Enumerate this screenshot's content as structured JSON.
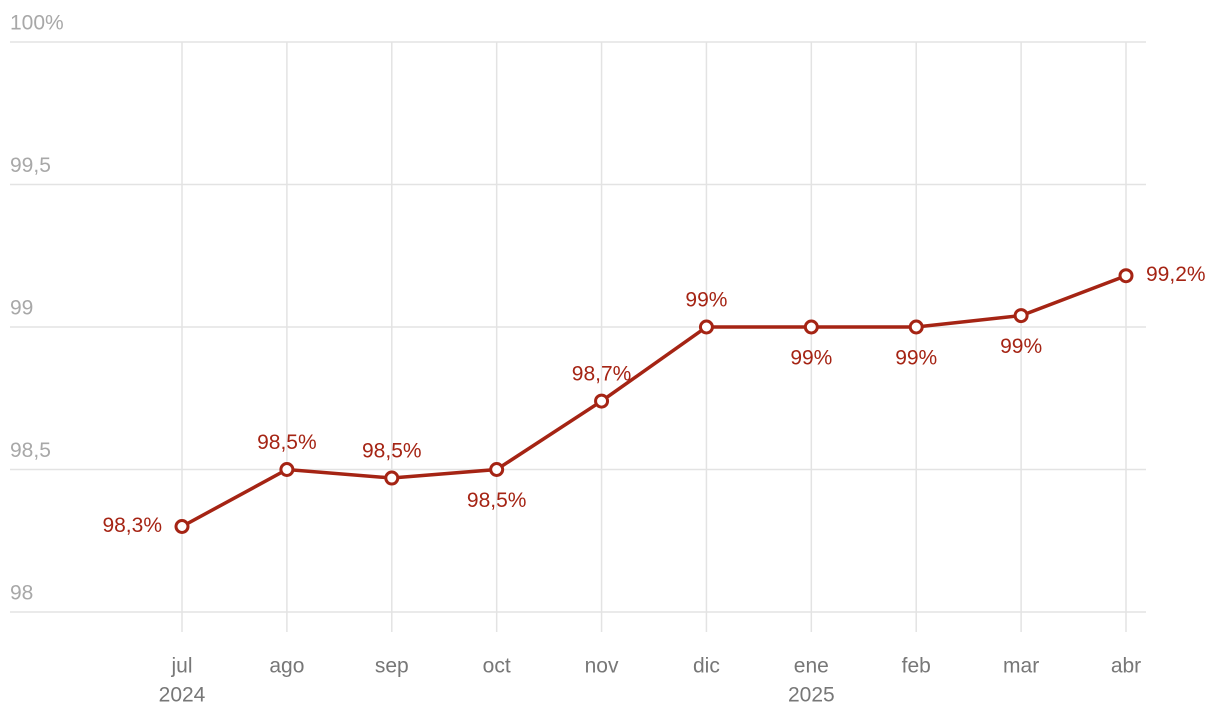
{
  "chart_data": {
    "type": "line",
    "categories": [
      "jul",
      "ago",
      "sep",
      "oct",
      "nov",
      "dic",
      "ene",
      "feb",
      "mar",
      "abr"
    ],
    "years": [
      "2024",
      null,
      null,
      null,
      null,
      null,
      "2025",
      null,
      null,
      null
    ],
    "series": [
      {
        "color": "#a52414",
        "values": [
          98.3,
          98.5,
          98.47,
          98.5,
          98.74,
          99.0,
          99.0,
          99.0,
          99.04,
          99.18
        ],
        "value_labels": [
          "98,3%",
          "98,5%",
          "98,5%",
          "98,5%",
          "98,7%",
          "99%",
          "99%",
          "99%",
          "99%",
          "99,2%"
        ]
      }
    ],
    "ylim": [
      98,
      100
    ],
    "yticks": [
      98,
      {
        "value": 98.5,
        "label": "98,5"
      },
      99,
      {
        "value": 99.5,
        "label": "99,5"
      },
      {
        "value": 100,
        "label": "100%"
      }
    ],
    "grid": true
  }
}
